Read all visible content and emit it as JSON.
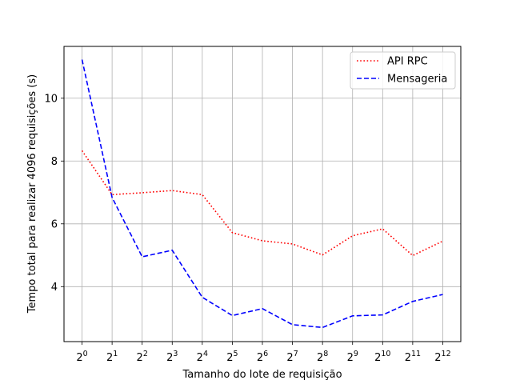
{
  "chart_data": {
    "type": "line",
    "title": "",
    "xlabel": "Tamanho do lote de requisição",
    "ylabel": "Tempo total para realizar 4096 requisições (s)",
    "x_tick_base": "2",
    "x": [
      0,
      1,
      2,
      3,
      4,
      5,
      6,
      7,
      8,
      9,
      10,
      11,
      12
    ],
    "x_tick_exponents": [
      "0",
      "1",
      "2",
      "3",
      "4",
      "5",
      "6",
      "7",
      "8",
      "9",
      "10",
      "11",
      "12"
    ],
    "yticks": [
      "4",
      "6",
      "8",
      "10"
    ],
    "y_tick_values": [
      4,
      6,
      8,
      10
    ],
    "xlim": [
      -0.6,
      12.6
    ],
    "ylim": [
      2.25,
      11.65
    ],
    "grid": true,
    "legend_position": "top-right",
    "series": [
      {
        "name": "API RPC",
        "color": "#ff0000",
        "style": "dotted",
        "values": [
          8.33,
          6.93,
          6.99,
          7.06,
          6.93,
          5.72,
          5.46,
          5.36,
          5.01,
          5.62,
          5.84,
          4.99,
          5.45
        ]
      },
      {
        "name": "Mensageria",
        "color": "#0000ff",
        "style": "dashed",
        "values": [
          11.23,
          6.84,
          4.95,
          5.16,
          3.66,
          3.08,
          3.3,
          2.79,
          2.7,
          3.07,
          3.1,
          3.53,
          3.75
        ]
      }
    ]
  }
}
